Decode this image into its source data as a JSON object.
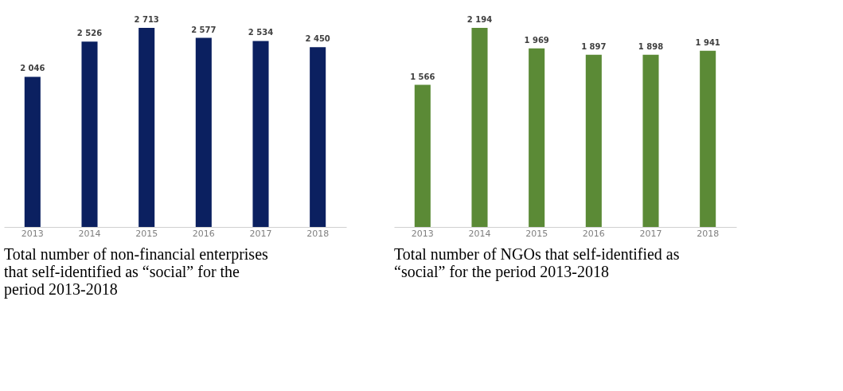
{
  "chart_data": [
    {
      "type": "bar",
      "title": "Total number of non-financial enterprises that self-identified as “social” for the period 2013-2018",
      "categories": [
        "2013",
        "2014",
        "2015",
        "2016",
        "2017",
        "2018"
      ],
      "values": [
        2046,
        2526,
        2713,
        2577,
        2534,
        2450
      ],
      "value_labels": [
        "2 046",
        "2 526",
        "2 713",
        "2 577",
        "2 534",
        "2 450"
      ],
      "color": "#0b2060",
      "grid": false,
      "tick_labels": "x"
    },
    {
      "type": "bar",
      "title": "Total number of NGOs that self-identified as “social” for the period 2013-2018",
      "categories": [
        "2013",
        "2014",
        "2015",
        "2016",
        "2017",
        "2018"
      ],
      "values": [
        1566,
        2194,
        1969,
        1897,
        1898,
        1941
      ],
      "value_labels": [
        "1 566",
        "2 194",
        "1 969",
        "1 897",
        "1 898",
        "1 941"
      ],
      "color": "#5b8a36",
      "grid": false,
      "tick_labels": "x"
    }
  ]
}
